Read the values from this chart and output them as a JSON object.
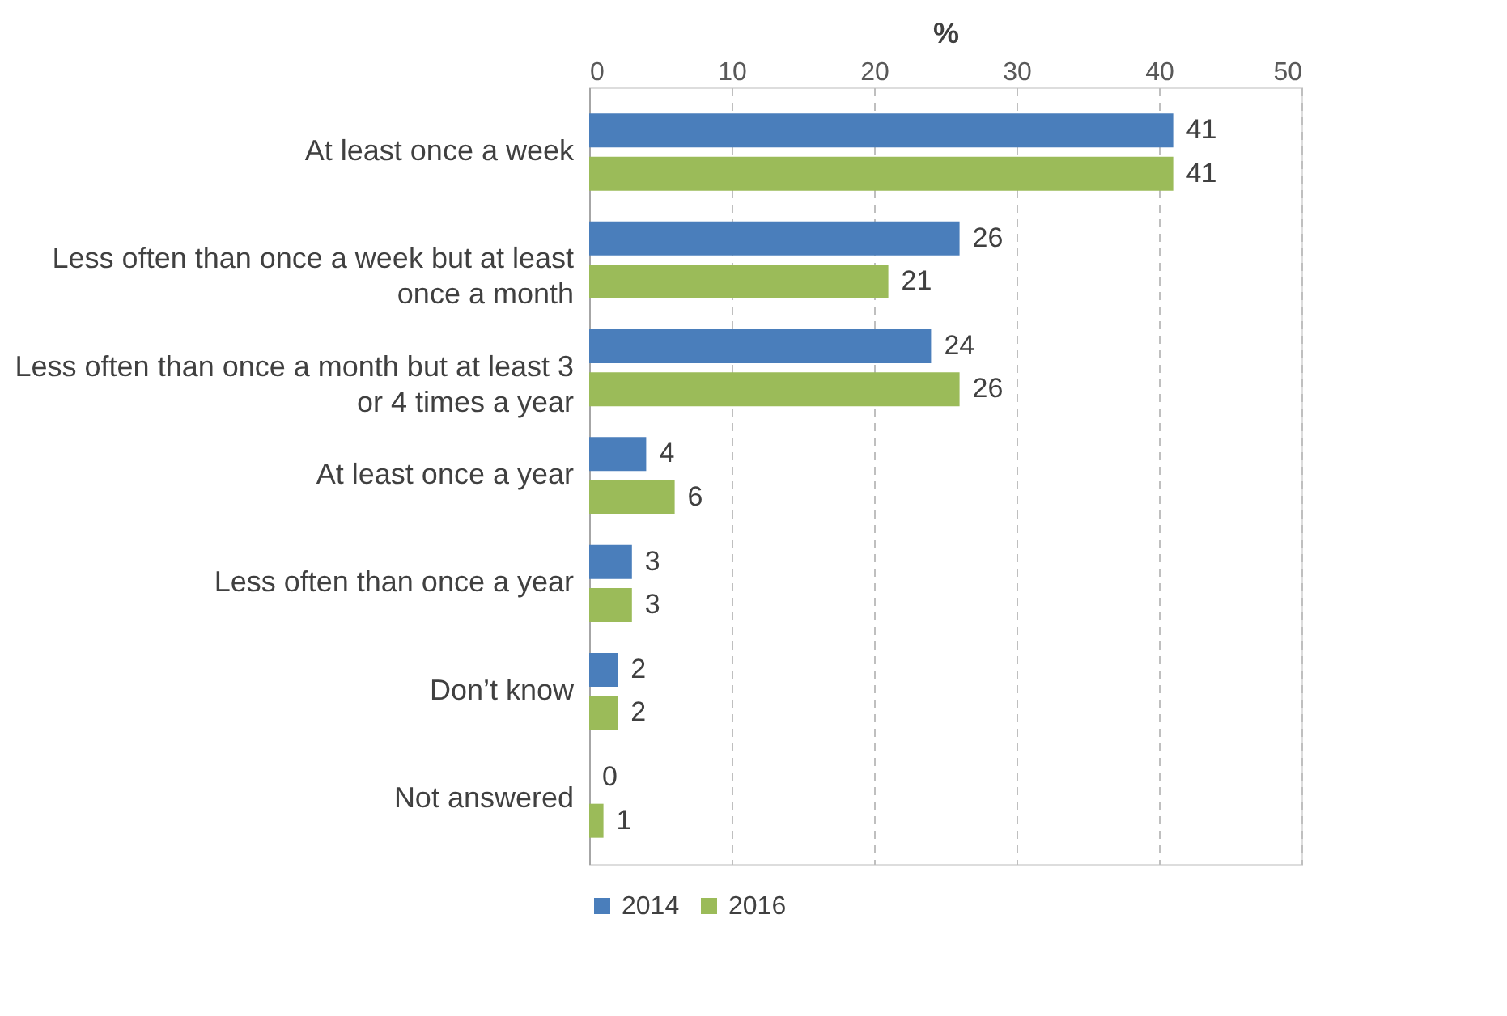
{
  "chart_data": {
    "type": "bar",
    "orientation": "horizontal",
    "xlabel": "%",
    "categories": [
      "At least once a week",
      "Less often than once a week but at least once a month",
      "Less often than once a month but at least 3 or 4 times a year",
      "At least once a year",
      "Less often than once a year",
      "Don’t know",
      "Not answered"
    ],
    "series": [
      {
        "name": "2014",
        "color": "#4a7ebb",
        "values": [
          41,
          26,
          24,
          4,
          3,
          2,
          0
        ]
      },
      {
        "name": "2016",
        "color": "#9bbb59",
        "values": [
          41,
          21,
          26,
          6,
          3,
          2,
          1
        ]
      }
    ],
    "xlim": [
      0,
      50
    ],
    "xticks": [
      0,
      10,
      20,
      30,
      40,
      50
    ],
    "grid": "x",
    "legend": "bottom",
    "data_labels": true
  }
}
